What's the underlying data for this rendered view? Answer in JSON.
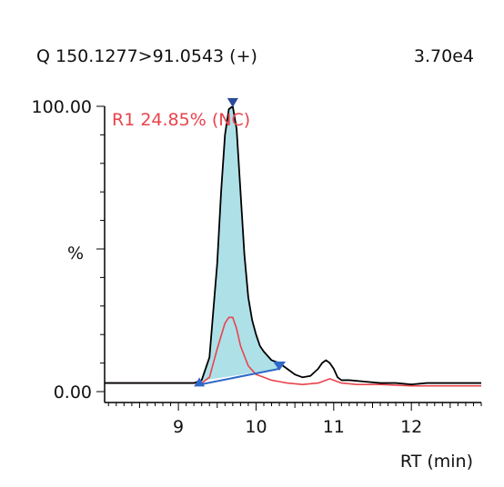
{
  "chart_data": {
    "type": "line",
    "transition_label": "Q 150.1277>91.0543 (+)",
    "max_intensity_label": "3.70e4",
    "ylabel": "%",
    "xlabel": "RT (min)",
    "xlim": [
      8.05,
      12.9
    ],
    "ylim": [
      0,
      100
    ],
    "x_ticks": [
      9,
      10,
      11,
      12
    ],
    "x_tick_labels": [
      "9",
      "10",
      "11",
      "12"
    ],
    "y_tick_labels": [
      "100.00",
      "0.00"
    ],
    "y_ticks": [
      100,
      0
    ],
    "annotation": "R1 24.85% (NC)",
    "colors": {
      "trace": "#000000",
      "reference_trace": "#e8434c",
      "fill": "#aee0e8",
      "baseline": "#2f68c8",
      "marker": "#2b4a99",
      "annotation": "#e8434c"
    },
    "series": [
      {
        "color": "#000000",
        "x": [
          8.05,
          9.0,
          9.2,
          9.3,
          9.4,
          9.5,
          9.55,
          9.6,
          9.65,
          9.7,
          9.75,
          9.8,
          9.85,
          9.9,
          9.95,
          10.0,
          10.05,
          10.1,
          10.2,
          10.3,
          10.4,
          10.5,
          10.6,
          10.7,
          10.8,
          10.85,
          10.9,
          10.95,
          11.0,
          11.05,
          11.1,
          11.2,
          11.4,
          11.6,
          11.8,
          12.0,
          12.2,
          12.4,
          12.6,
          12.9
        ],
        "y": [
          3,
          3,
          3,
          4,
          12,
          45,
          70,
          90,
          99,
          100,
          92,
          70,
          48,
          33,
          25,
          20,
          16,
          14,
          11,
          10,
          8,
          6,
          5,
          5.5,
          8,
          10,
          11,
          10,
          8,
          5,
          4,
          4,
          3.5,
          3,
          3,
          2.5,
          3,
          3,
          3,
          3
        ]
      },
      {
        "color": "#e8434c",
        "x": [
          8.05,
          9.0,
          9.3,
          9.4,
          9.5,
          9.6,
          9.65,
          9.7,
          9.75,
          9.8,
          9.9,
          10.0,
          10.1,
          10.2,
          10.3,
          10.4,
          10.6,
          10.8,
          10.9,
          10.95,
          11.0,
          11.1,
          11.3,
          11.6,
          12.0,
          12.4,
          12.9
        ],
        "y": [
          3,
          3,
          3,
          5,
          15,
          24,
          26,
          26,
          22,
          16,
          9,
          6,
          5,
          4,
          3.5,
          3,
          2.5,
          3,
          4,
          4.5,
          4,
          3,
          2.5,
          2.5,
          2,
          2,
          2
        ]
      }
    ],
    "integration_start": 9.27,
    "integration_end": 10.3,
    "integration_end_level": 8,
    "peak_apex_x": 9.7
  }
}
